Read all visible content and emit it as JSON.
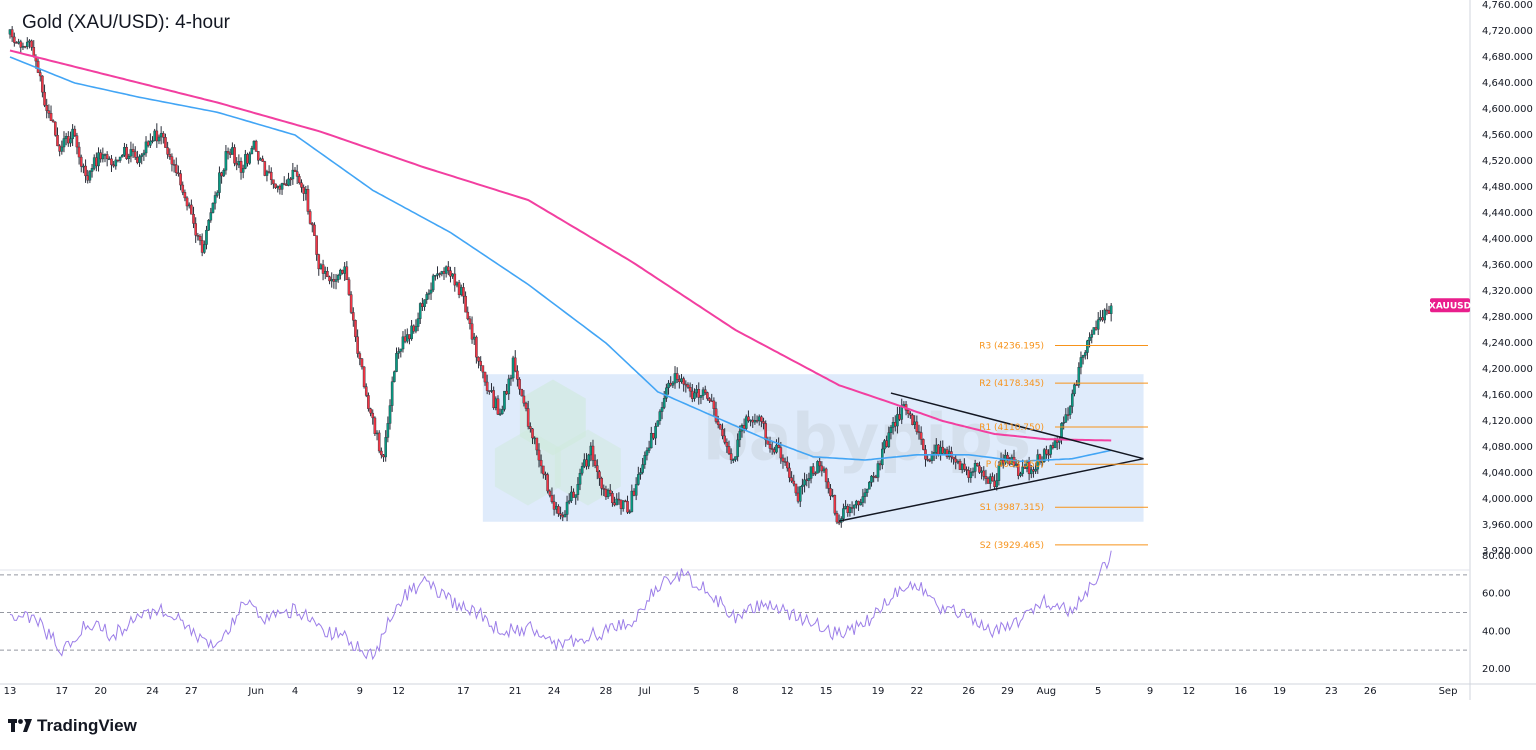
{
  "header": {
    "title": "Gold (XAU/USD): 4-hour"
  },
  "footer": {
    "brand": "TradingView"
  },
  "colors": {
    "up": "#089981",
    "down": "#f23645",
    "ema_slow": "#f23fa0",
    "ema_fast": "#42a5f5",
    "rsi": "#9c7ee8",
    "levels": "#f7931a",
    "zone": "#dbe9fb",
    "badge": "#e91e8c"
  },
  "chart_data": [
    {
      "type": "candlestick",
      "symbol_badge": "XAUUSD",
      "y_ticks": [
        "4,760.000",
        "4,720.000",
        "4,680.000",
        "4,640.000",
        "4,600.000",
        "4,560.000",
        "4,520.000",
        "4,480.000",
        "4,440.000",
        "4,400.000",
        "4,360.000",
        "4,320.000",
        "4,280.000",
        "4,240.000",
        "4,200.000",
        "4,160.000",
        "4,120.000",
        "4,080.000",
        "4,040.000",
        "4,000.000",
        "3,960.000",
        "3,920.000"
      ],
      "y_tick_values": [
        4760,
        4720,
        4680,
        4640,
        4600,
        4560,
        4520,
        4480,
        4440,
        4400,
        4360,
        4320,
        4280,
        4240,
        4200,
        4160,
        4120,
        4080,
        4040,
        4000,
        3960,
        3920
      ],
      "ylim": [
        3890,
        4780
      ],
      "x_labels": [
        "13",
        "17",
        "20",
        "24",
        "27",
        "Jun",
        "4",
        "9",
        "12",
        "17",
        "21",
        "24",
        "28",
        "Jul",
        "5",
        "8",
        "12",
        "15",
        "19",
        "22",
        "26",
        "29",
        "Aug",
        "5",
        "9",
        "12",
        "16",
        "19",
        "23",
        "26",
        "Sep"
      ],
      "x_label_days": [
        0,
        4,
        7,
        11,
        14,
        19,
        22,
        27,
        30,
        35,
        39,
        42,
        46,
        49,
        53,
        56,
        60,
        63,
        67,
        70,
        74,
        77,
        80,
        84,
        88,
        91,
        95,
        98,
        102,
        105,
        111
      ],
      "price_path": [
        [
          0,
          4715
        ],
        [
          2,
          4690
        ],
        [
          3,
          4600
        ],
        [
          4,
          4540
        ],
        [
          5,
          4560
        ],
        [
          6,
          4490
        ],
        [
          7,
          4530
        ],
        [
          8,
          4515
        ],
        [
          9,
          4535
        ],
        [
          10,
          4520
        ],
        [
          11,
          4560
        ],
        [
          12,
          4550
        ],
        [
          13,
          4510
        ],
        [
          14,
          4450
        ],
        [
          15,
          4380
        ],
        [
          16,
          4470
        ],
        [
          17,
          4540
        ],
        [
          18,
          4510
        ],
        [
          19,
          4540
        ],
        [
          20,
          4500
        ],
        [
          21,
          4480
        ],
        [
          22,
          4500
        ],
        [
          23,
          4470
        ],
        [
          24,
          4360
        ],
        [
          25,
          4340
        ],
        [
          26,
          4350
        ],
        [
          27,
          4230
        ],
        [
          28,
          4130
        ],
        [
          29,
          4060
        ],
        [
          29.5,
          4140
        ],
        [
          30,
          4230
        ],
        [
          31,
          4250
        ],
        [
          32,
          4300
        ],
        [
          33,
          4340
        ],
        [
          34,
          4350
        ],
        [
          35,
          4320
        ],
        [
          36,
          4240
        ],
        [
          37,
          4170
        ],
        [
          38,
          4130
        ],
        [
          39,
          4210
        ],
        [
          40,
          4130
        ],
        [
          41,
          4070
        ],
        [
          42,
          3990
        ],
        [
          43,
          3980
        ],
        [
          44,
          4020
        ],
        [
          45,
          4080
        ],
        [
          46,
          4010
        ],
        [
          47,
          3990
        ],
        [
          48,
          3990
        ],
        [
          49,
          4060
        ],
        [
          50,
          4110
        ],
        [
          51,
          4180
        ],
        [
          52,
          4190
        ],
        [
          53,
          4160
        ],
        [
          54,
          4160
        ],
        [
          55,
          4110
        ],
        [
          56,
          4060
        ],
        [
          57,
          4130
        ],
        [
          58,
          4120
        ],
        [
          59,
          4080
        ],
        [
          60,
          4060
        ],
        [
          61,
          4000
        ],
        [
          62,
          4050
        ],
        [
          63,
          4050
        ],
        [
          64,
          3970
        ],
        [
          65,
          3990
        ],
        [
          66,
          4000
        ],
        [
          67,
          4040
        ],
        [
          68,
          4100
        ],
        [
          69,
          4140
        ],
        [
          70,
          4120
        ],
        [
          71,
          4060
        ],
        [
          72,
          4080
        ],
        [
          73,
          4060
        ],
        [
          74,
          4040
        ],
        [
          75,
          4050
        ],
        [
          76,
          4020
        ],
        [
          77,
          4070
        ],
        [
          78,
          4040
        ],
        [
          79,
          4050
        ],
        [
          80,
          4070
        ],
        [
          81,
          4090
        ],
        [
          82,
          4150
        ],
        [
          83,
          4220
        ],
        [
          84,
          4260
        ],
        [
          85,
          4290
        ]
      ],
      "ema_slow_path": [
        [
          0,
          4690
        ],
        [
          8,
          4650
        ],
        [
          16,
          4610
        ],
        [
          24,
          4565
        ],
        [
          32,
          4510
        ],
        [
          40,
          4460
        ],
        [
          48,
          4365
        ],
        [
          56,
          4260
        ],
        [
          64,
          4175
        ],
        [
          68,
          4148
        ],
        [
          72,
          4120
        ],
        [
          76,
          4100
        ],
        [
          80,
          4092
        ],
        [
          85,
          4090
        ]
      ],
      "ema_fast_path": [
        [
          0,
          4680
        ],
        [
          5,
          4640
        ],
        [
          10,
          4618
        ],
        [
          16,
          4595
        ],
        [
          22,
          4560
        ],
        [
          28,
          4475
        ],
        [
          34,
          4410
        ],
        [
          40,
          4330
        ],
        [
          46,
          4240
        ],
        [
          50,
          4165
        ],
        [
          54,
          4130
        ],
        [
          58,
          4095
        ],
        [
          62,
          4065
        ],
        [
          66,
          4060
        ],
        [
          70,
          4068
        ],
        [
          74,
          4068
        ],
        [
          78,
          4058
        ],
        [
          82,
          4062
        ],
        [
          85,
          4075
        ]
      ],
      "consolidation_zone": {
        "x_start_day": 36.5,
        "x_end_day": 87.5,
        "y_low": 3965,
        "y_high": 4192
      },
      "triangle": {
        "upper": [
          [
            68,
            4163
          ],
          [
            87.5,
            4062
          ]
        ],
        "lower": [
          [
            64,
            3966
          ],
          [
            87.5,
            4062
          ]
        ]
      },
      "pivot_levels": [
        {
          "label": "R3 (4236.195)",
          "value": 4236.195
        },
        {
          "label": "R2 (4178.345)",
          "value": 4178.345
        },
        {
          "label": "R1 (4110.750)",
          "value": 4110.75
        },
        {
          "label": "P (4053.550)",
          "value": 4053.55
        },
        {
          "label": "S1 (3987.315)",
          "value": 3987.315
        },
        {
          "label": "S2 (3929.465)",
          "value": 3929.465
        }
      ],
      "watermark": "babypips"
    },
    {
      "type": "line",
      "indicator": "RSI",
      "ylim": [
        12,
        90
      ],
      "y_ticks": [
        "80.00",
        "60.00",
        "40.00",
        "20.00"
      ],
      "y_tick_values": [
        80,
        60,
        40,
        20
      ],
      "reference_lines": [
        70,
        50,
        30
      ],
      "rsi_path": [
        [
          0,
          50
        ],
        [
          2,
          46
        ],
        [
          4,
          30
        ],
        [
          6,
          44
        ],
        [
          8,
          38
        ],
        [
          10,
          48
        ],
        [
          12,
          52
        ],
        [
          14,
          40
        ],
        [
          16,
          30
        ],
        [
          18,
          55
        ],
        [
          20,
          46
        ],
        [
          22,
          52
        ],
        [
          24,
          42
        ],
        [
          26,
          36
        ],
        [
          28,
          26
        ],
        [
          30,
          56
        ],
        [
          32,
          66
        ],
        [
          34,
          56
        ],
        [
          36,
          50
        ],
        [
          38,
          40
        ],
        [
          40,
          42
        ],
        [
          42,
          32
        ],
        [
          44,
          36
        ],
        [
          46,
          40
        ],
        [
          48,
          46
        ],
        [
          50,
          65
        ],
        [
          52,
          70
        ],
        [
          54,
          60
        ],
        [
          56,
          48
        ],
        [
          58,
          54
        ],
        [
          60,
          50
        ],
        [
          62,
          44
        ],
        [
          64,
          38
        ],
        [
          66,
          44
        ],
        [
          68,
          58
        ],
        [
          70,
          66
        ],
        [
          72,
          52
        ],
        [
          74,
          48
        ],
        [
          76,
          40
        ],
        [
          78,
          46
        ],
        [
          80,
          56
        ],
        [
          82,
          50
        ],
        [
          84,
          68
        ],
        [
          85,
          82
        ]
      ]
    }
  ]
}
